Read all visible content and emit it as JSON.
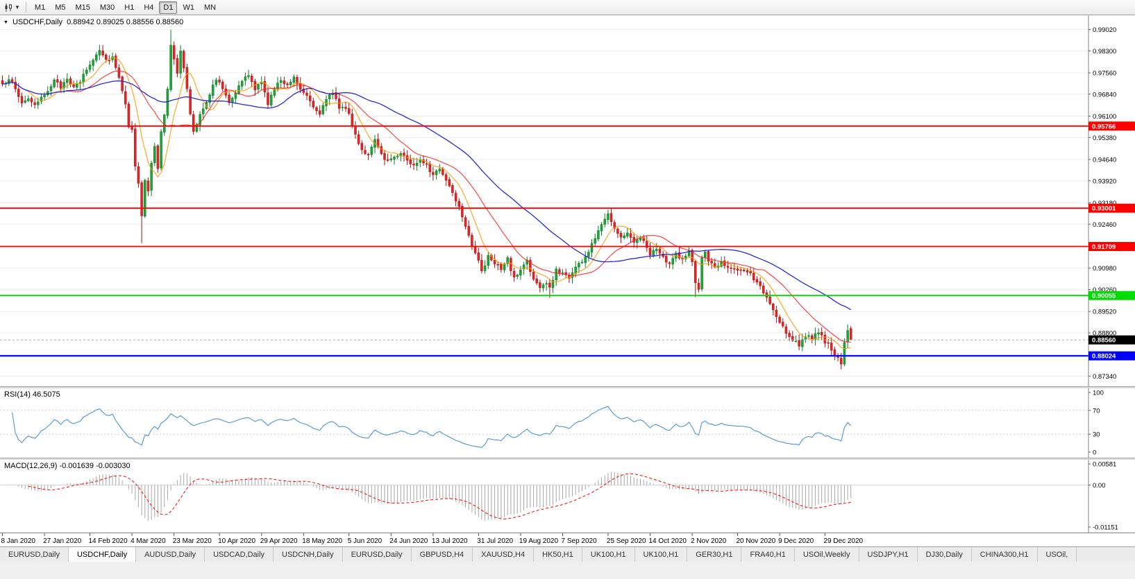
{
  "toolbar": {
    "chart_type_icon": "candlestick-chart-icon",
    "timeframes": [
      "M1",
      "M5",
      "M15",
      "M30",
      "H1",
      "H4",
      "D1",
      "W1",
      "MN"
    ],
    "active_timeframe": "D1"
  },
  "chart": {
    "symbol_timeframe": "USDCHF,Daily",
    "ohlc_text": "0.88942 0.89025 0.88556 0.88560",
    "price_top": 0.995,
    "price_bottom": 0.87,
    "price_axis_ticks": [
      "0.99020",
      "0.98300",
      "0.97560",
      "0.96840",
      "0.96100",
      "0.95380",
      "0.94640",
      "0.93920",
      "0.93180",
      "0.92460",
      "0.91720",
      "0.90980",
      "0.90260",
      "0.89520",
      "0.88800",
      "0.88060",
      "0.87340"
    ],
    "hlines": [
      {
        "label": "0.95766",
        "value": 0.95766,
        "color": "#FF0000",
        "width": 1.8
      },
      {
        "label": "0.93001",
        "value": 0.93001,
        "color": "#FF0000",
        "width": 1.8
      },
      {
        "label": "0.91709",
        "value": 0.91709,
        "color": "#FF0000",
        "width": 1.8
      },
      {
        "label": "0.90055",
        "value": 0.90055,
        "color": "#00DC00",
        "width": 1.8
      },
      {
        "label": "0.88024",
        "value": 0.88024,
        "color": "#0000FF",
        "width": 2.2
      }
    ],
    "current_price": {
      "label": "0.88560",
      "value": 0.8856
    }
  },
  "rsi": {
    "label": "RSI(14) 46.5075",
    "period": 14,
    "current_value": "46.5075",
    "levels": [
      100,
      70,
      30,
      0
    ],
    "color": "#4F94CD"
  },
  "macd": {
    "label": "MACD(12,26,9) -0.001639 -0.003030",
    "current_value": "-0.001639",
    "current_signal": "-0.003030",
    "axis_ticks": [
      "0.00581",
      "0.00",
      "-0.01151"
    ],
    "ylim": [
      -0.01151,
      0.00581
    ]
  },
  "date_axis": [
    {
      "label": "8 Jan 2020",
      "i": 0
    },
    {
      "label": "27 Jan 2020",
      "i": 13
    },
    {
      "label": "14 Feb 2020",
      "i": 27
    },
    {
      "label": "4 Mar 2020",
      "i": 40
    },
    {
      "label": "23 Mar 2020",
      "i": 53
    },
    {
      "label": "10 Apr 2020",
      "i": 67
    },
    {
      "label": "29 Apr 2020",
      "i": 80
    },
    {
      "label": "18 May 2020",
      "i": 93
    },
    {
      "label": "5 Jun 2020",
      "i": 107
    },
    {
      "label": "24 Jun 2020",
      "i": 120
    },
    {
      "label": "13 Jul 2020",
      "i": 133
    },
    {
      "label": "31 Jul 2020",
      "i": 147
    },
    {
      "label": "19 Aug 2020",
      "i": 160
    },
    {
      "label": "7 Sep 2020",
      "i": 173
    },
    {
      "label": "25 Sep 2020",
      "i": 187
    },
    {
      "label": "14 Oct 2020",
      "i": 200
    },
    {
      "label": "2 Nov 2020",
      "i": 213
    },
    {
      "label": "20 Nov 2020",
      "i": 227
    },
    {
      "label": "9 Dec 2020",
      "i": 240
    },
    {
      "label": "29 Dec 2020",
      "i": 254
    }
  ],
  "tabs": {
    "active_index": 1,
    "items": [
      "EURUSD,Daily",
      "USDCHF,Daily",
      "AUDUSD,Daily",
      "USDCAD,Daily",
      "USDCNH,Daily",
      "EURUSD,Daily",
      "GBPUSD,H4",
      "XAUUSD,H4",
      "HK50,H1",
      "UK100,H1",
      "UK100,H1",
      "GER30,H1",
      "FRA40,H1",
      "USOil,Weekly",
      "USDJPY,H1",
      "DJ30,Daily",
      "CHINA300,H1",
      "USOil,"
    ]
  },
  "chart_data": {
    "type": "candlestick-with-indicators",
    "symbol": "USDCHF",
    "timeframe": "Daily",
    "n_candles": 263,
    "last_ohlc": {
      "open": 0.88942,
      "high": 0.89025,
      "low": 0.88556,
      "close": 0.8856
    },
    "close_anchors": [
      [
        0,
        0.9712
      ],
      [
        2,
        0.974
      ],
      [
        4,
        0.97
      ],
      [
        6,
        0.9655
      ],
      [
        8,
        0.9672
      ],
      [
        10,
        0.9642
      ],
      [
        12,
        0.9668
      ],
      [
        14,
        0.97
      ],
      [
        16,
        0.9728
      ],
      [
        18,
        0.9708
      ],
      [
        20,
        0.9742
      ],
      [
        22,
        0.9702
      ],
      [
        24,
        0.9726
      ],
      [
        26,
        0.9768
      ],
      [
        28,
        0.98
      ],
      [
        30,
        0.9838
      ],
      [
        32,
        0.98
      ],
      [
        34,
        0.981
      ],
      [
        35,
        0.9775
      ],
      [
        36,
        0.9745
      ],
      [
        37,
        0.97
      ],
      [
        38,
        0.9645
      ],
      [
        39,
        0.958
      ],
      [
        40,
        0.957
      ],
      [
        41,
        0.9445
      ],
      [
        42,
        0.938
      ],
      [
        43,
        0.927
      ],
      [
        44,
        0.939
      ],
      [
        45,
        0.936
      ],
      [
        46,
        0.945
      ],
      [
        47,
        0.951
      ],
      [
        48,
        0.943
      ],
      [
        49,
        0.9555
      ],
      [
        50,
        0.961
      ],
      [
        51,
        0.9705
      ],
      [
        52,
        0.9855
      ],
      [
        53,
        0.9805
      ],
      [
        54,
        0.975
      ],
      [
        55,
        0.983
      ],
      [
        56,
        0.977
      ],
      [
        57,
        0.97
      ],
      [
        58,
        0.962
      ],
      [
        59,
        0.956
      ],
      [
        60,
        0.9585
      ],
      [
        61,
        0.962
      ],
      [
        62,
        0.964
      ],
      [
        64,
        0.9685
      ],
      [
        66,
        0.9738
      ],
      [
        68,
        0.9702
      ],
      [
        70,
        0.9662
      ],
      [
        72,
        0.9692
      ],
      [
        74,
        0.9728
      ],
      [
        76,
        0.9748
      ],
      [
        78,
        0.9702
      ],
      [
        80,
        0.9722
      ],
      [
        82,
        0.9655
      ],
      [
        84,
        0.9702
      ],
      [
        86,
        0.9732
      ],
      [
        88,
        0.9718
      ],
      [
        90,
        0.9742
      ],
      [
        92,
        0.9702
      ],
      [
        94,
        0.9686
      ],
      [
        96,
        0.9642
      ],
      [
        98,
        0.9622
      ],
      [
        100,
        0.9662
      ],
      [
        102,
        0.9692
      ],
      [
        104,
        0.9642
      ],
      [
        106,
        0.964
      ],
      [
        107,
        0.9612
      ],
      [
        109,
        0.9548
      ],
      [
        111,
        0.9498
      ],
      [
        113,
        0.9478
      ],
      [
        115,
        0.9525
      ],
      [
        117,
        0.9482
      ],
      [
        119,
        0.9458
      ],
      [
        121,
        0.9475
      ],
      [
        123,
        0.9488
      ],
      [
        125,
        0.9462
      ],
      [
        127,
        0.9442
      ],
      [
        129,
        0.9468
      ],
      [
        131,
        0.945
      ],
      [
        133,
        0.9408
      ],
      [
        135,
        0.9435
      ],
      [
        137,
        0.9395
      ],
      [
        139,
        0.9355
      ],
      [
        141,
        0.9305
      ],
      [
        143,
        0.9245
      ],
      [
        145,
        0.9175
      ],
      [
        147,
        0.9128
      ],
      [
        148,
        0.9082
      ],
      [
        150,
        0.9135
      ],
      [
        152,
        0.9118
      ],
      [
        154,
        0.9092
      ],
      [
        156,
        0.9128
      ],
      [
        158,
        0.9062
      ],
      [
        160,
        0.9092
      ],
      [
        162,
        0.9125
      ],
      [
        164,
        0.9058
      ],
      [
        166,
        0.9032
      ],
      [
        168,
        0.9048
      ],
      [
        169,
        0.9028
      ],
      [
        171,
        0.9092
      ],
      [
        173,
        0.9082
      ],
      [
        175,
        0.9068
      ],
      [
        177,
        0.9102
      ],
      [
        179,
        0.9122
      ],
      [
        181,
        0.9152
      ],
      [
        183,
        0.9202
      ],
      [
        185,
        0.9252
      ],
      [
        187,
        0.9282
      ],
      [
        189,
        0.9238
      ],
      [
        191,
        0.9198
      ],
      [
        193,
        0.9222
      ],
      [
        195,
        0.9182
      ],
      [
        197,
        0.9205
      ],
      [
        199,
        0.9165
      ],
      [
        200,
        0.9148
      ],
      [
        202,
        0.916
      ],
      [
        204,
        0.9132
      ],
      [
        206,
        0.9108
      ],
      [
        208,
        0.9148
      ],
      [
        210,
        0.9128
      ],
      [
        212,
        0.9155
      ],
      [
        213,
        0.9118
      ],
      [
        214,
        0.9045
      ],
      [
        215,
        0.9028
      ],
      [
        216,
        0.9135
      ],
      [
        217,
        0.9148
      ],
      [
        218,
        0.9115
      ],
      [
        220,
        0.9102
      ],
      [
        222,
        0.912
      ],
      [
        224,
        0.9105
      ],
      [
        226,
        0.909
      ],
      [
        228,
        0.9085
      ],
      [
        230,
        0.9088
      ],
      [
        232,
        0.9062
      ],
      [
        234,
        0.9035
      ],
      [
        236,
        0.8998
      ],
      [
        238,
        0.8955
      ],
      [
        240,
        0.8912
      ],
      [
        242,
        0.8882
      ],
      [
        244,
        0.8858
      ],
      [
        246,
        0.884
      ],
      [
        248,
        0.8872
      ],
      [
        250,
        0.8856
      ],
      [
        252,
        0.8885
      ],
      [
        254,
        0.8852
      ],
      [
        255,
        0.884
      ],
      [
        256,
        0.882
      ],
      [
        257,
        0.8802
      ],
      [
        258,
        0.8792
      ],
      [
        259,
        0.8772
      ],
      [
        260,
        0.885
      ],
      [
        261,
        0.8892
      ],
      [
        262,
        0.8856
      ]
    ],
    "wick_overrides": {
      "43": {
        "low": 0.9182
      },
      "52": {
        "high": 0.9901
      },
      "169": {
        "low": 0.8998
      },
      "187": {
        "high": 0.9295
      },
      "214": {
        "low": 0.9
      },
      "246": {
        "low": 0.8821
      },
      "259": {
        "low": 0.8757
      }
    },
    "colors": {
      "up": "#1CA437",
      "up_border": "#0F7A26",
      "down": "#E42525",
      "down_border": "#A31212"
    },
    "indicators": {
      "ma_fast": {
        "type": "SMA",
        "period": 8,
        "color": "#FF9900"
      },
      "ma_mid": {
        "type": "SMA",
        "period": 20,
        "color": "#FF2222"
      },
      "ma_slow": {
        "type": "SMA",
        "period": 45,
        "color": "#2A2AD4"
      },
      "rsi": {
        "period": 14,
        "current": 46.5075
      },
      "macd": {
        "fast": 12,
        "slow": 26,
        "signal": 9,
        "current": -0.001639,
        "current_signal": -0.00303,
        "hist_color": "#A6A6A6",
        "signal_color": "#FF0000"
      }
    }
  }
}
